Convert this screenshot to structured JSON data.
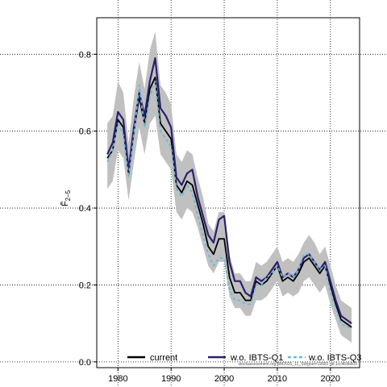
{
  "chart_data": {
    "type": "line",
    "title": "",
    "xlabel": "",
    "ylabel": "F̄",
    "ylabel_sub": "2–5",
    "xlim": [
      1976,
      2025.5
    ],
    "ylim": [
      -0.015,
      0.895
    ],
    "x_ticks": [
      1980,
      1990,
      2000,
      2010,
      2020
    ],
    "y_ticks": [
      0.0,
      0.2,
      0.4,
      0.6,
      0.8
    ],
    "x_tick_labels": [
      "1980",
      "1990",
      "2000",
      "2010",
      "2020"
    ],
    "y_tick_labels": [
      "0.0",
      "0.2",
      "0.4",
      "0.6",
      "0.8"
    ],
    "grid": true,
    "legend_position": "bottom",
    "watermark": "stockassessment.org BM2026_11_SWgnet=19681 git:1cc464b609",
    "x": [
      1978,
      1979,
      1980,
      1981,
      1982,
      1983,
      1984,
      1985,
      1986,
      1987,
      1988,
      1989,
      1990,
      1991,
      1992,
      1993,
      1994,
      1995,
      1996,
      1997,
      1998,
      1999,
      2000,
      2001,
      2002,
      2003,
      2004,
      2005,
      2006,
      2007,
      2008,
      2009,
      2010,
      2011,
      2012,
      2013,
      2014,
      2015,
      2016,
      2017,
      2018,
      2019,
      2020,
      2021,
      2022,
      2023,
      2024
    ],
    "series": [
      {
        "name": "current",
        "color": "#000000",
        "dash": "solid",
        "values": [
          0.53,
          0.55,
          0.63,
          0.61,
          0.49,
          0.6,
          0.69,
          0.62,
          0.71,
          0.74,
          0.62,
          0.6,
          0.58,
          0.46,
          0.44,
          0.47,
          0.46,
          0.41,
          0.36,
          0.3,
          0.28,
          0.32,
          0.32,
          0.22,
          0.18,
          0.18,
          0.16,
          0.16,
          0.21,
          0.2,
          0.21,
          0.23,
          0.25,
          0.21,
          0.22,
          0.21,
          0.23,
          0.26,
          0.27,
          0.25,
          0.23,
          0.25,
          0.2,
          0.15,
          0.11,
          0.1,
          0.09
        ]
      },
      {
        "name": "w.o. IBTS-Q1",
        "color": "#2c1f6e",
        "dash": "solid",
        "values": [
          0.54,
          0.57,
          0.65,
          0.63,
          0.5,
          0.61,
          0.7,
          0.64,
          0.73,
          0.79,
          0.66,
          0.64,
          0.61,
          0.48,
          0.46,
          0.49,
          0.5,
          0.43,
          0.38,
          0.33,
          0.31,
          0.37,
          0.38,
          0.26,
          0.21,
          0.21,
          0.18,
          0.17,
          0.22,
          0.21,
          0.22,
          0.24,
          0.26,
          0.22,
          0.23,
          0.22,
          0.24,
          0.27,
          0.28,
          0.26,
          0.24,
          0.26,
          0.21,
          0.16,
          0.12,
          0.11,
          0.1
        ]
      },
      {
        "name": "w.o. IBTS-Q3",
        "color": "#6cb8d4",
        "dash": "dashed",
        "values": [
          0.52,
          0.55,
          0.62,
          0.59,
          0.48,
          0.59,
          0.72,
          0.61,
          0.69,
          0.73,
          0.6,
          0.58,
          0.56,
          0.45,
          0.43,
          0.46,
          0.44,
          0.38,
          0.33,
          0.28,
          0.25,
          0.27,
          0.27,
          0.19,
          0.16,
          0.16,
          0.15,
          0.15,
          0.2,
          0.2,
          0.22,
          0.23,
          0.25,
          0.22,
          0.23,
          0.22,
          0.24,
          0.28,
          0.28,
          0.26,
          0.24,
          0.25,
          0.18,
          0.14,
          0.1,
          0.09,
          0.09
        ]
      }
    ],
    "band": {
      "lower": [
        0.45,
        0.47,
        0.55,
        0.53,
        0.42,
        0.52,
        0.61,
        0.54,
        0.62,
        0.64,
        0.54,
        0.52,
        0.5,
        0.39,
        0.37,
        0.4,
        0.39,
        0.35,
        0.3,
        0.25,
        0.23,
        0.26,
        0.26,
        0.17,
        0.14,
        0.14,
        0.12,
        0.12,
        0.16,
        0.16,
        0.17,
        0.19,
        0.21,
        0.17,
        0.18,
        0.17,
        0.18,
        0.21,
        0.22,
        0.2,
        0.18,
        0.2,
        0.15,
        0.11,
        0.07,
        0.06,
        0.05
      ],
      "upper": [
        0.62,
        0.64,
        0.73,
        0.7,
        0.57,
        0.69,
        0.78,
        0.71,
        0.81,
        0.86,
        0.72,
        0.7,
        0.67,
        0.54,
        0.52,
        0.55,
        0.54,
        0.48,
        0.43,
        0.36,
        0.34,
        0.39,
        0.39,
        0.28,
        0.23,
        0.23,
        0.21,
        0.21,
        0.26,
        0.25,
        0.26,
        0.28,
        0.3,
        0.26,
        0.27,
        0.26,
        0.28,
        0.31,
        0.33,
        0.31,
        0.28,
        0.3,
        0.25,
        0.2,
        0.16,
        0.15,
        0.14
      ],
      "color": "#c0c0c0"
    }
  }
}
